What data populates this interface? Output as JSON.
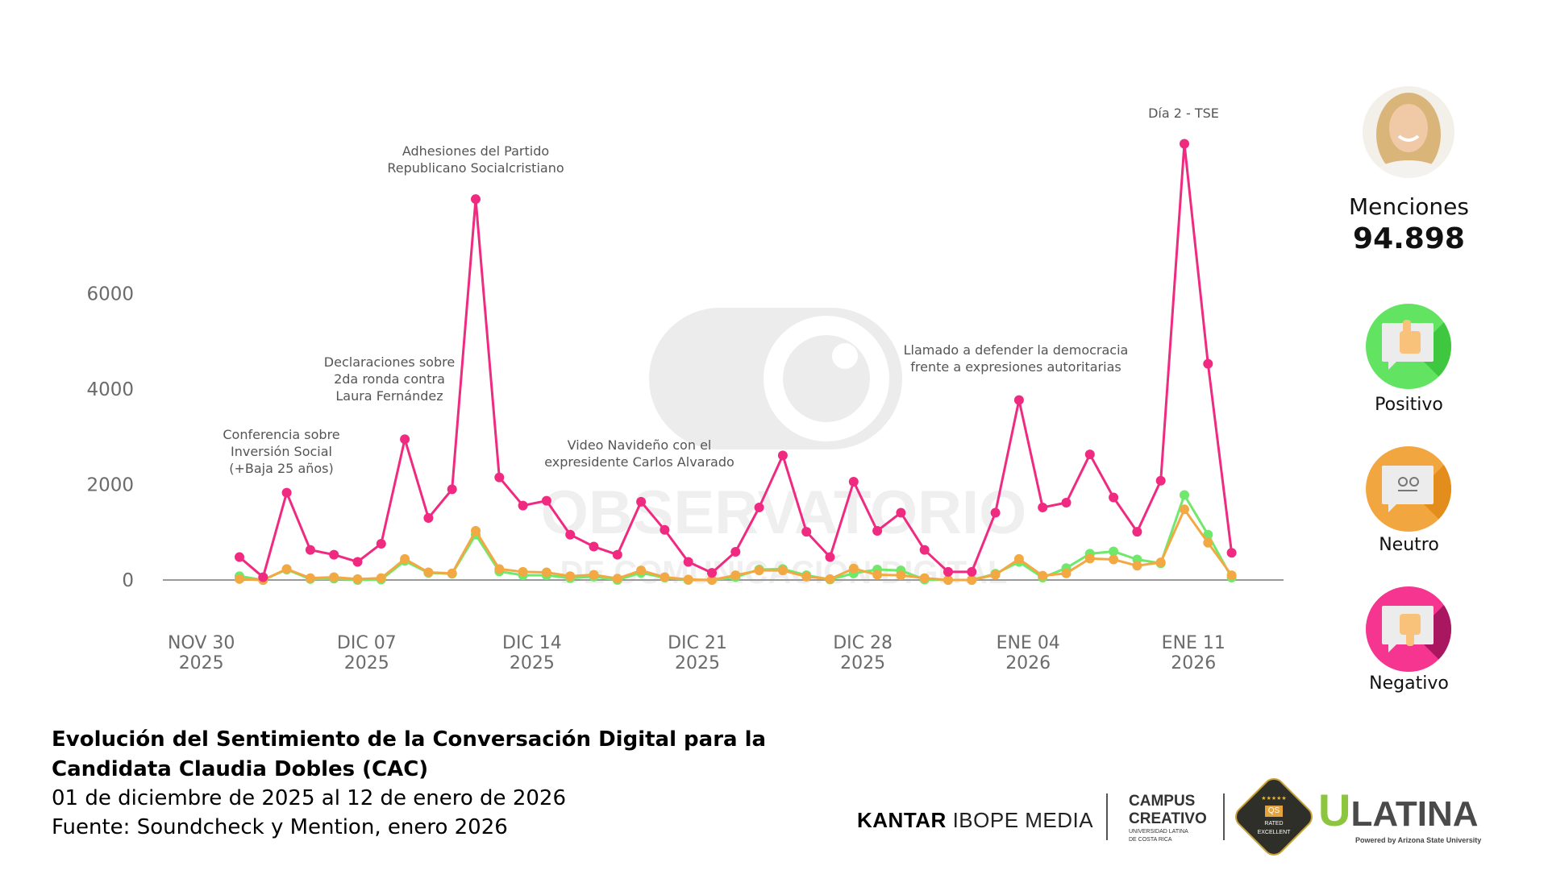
{
  "chart_data": {
    "type": "line",
    "title": "Evolución del Sentimiento de la Conversación Digital para la Candidata Claudia Dobles (CAC)",
    "xlabel": "",
    "ylabel": "",
    "ylim": [
      -300,
      9500
    ],
    "yticks": [
      "0",
      "2000",
      "4000",
      "6000"
    ],
    "ytick_values": [
      0,
      2000,
      4000,
      6000
    ],
    "x_start": "2025-12-01",
    "x_end": "2026-01-12",
    "xticks": [
      {
        "line1": "NOV 30",
        "line2": "2025",
        "day_index": -1
      },
      {
        "line1": "DIC 07",
        "line2": "2025",
        "day_index": 6
      },
      {
        "line1": "DIC 14",
        "line2": "2025",
        "day_index": 13
      },
      {
        "line1": "DIC 21",
        "line2": "2025",
        "day_index": 20
      },
      {
        "line1": "DIC 28",
        "line2": "2025",
        "day_index": 27
      },
      {
        "line1": "ENE 04",
        "line2": "2026",
        "day_index": 34
      },
      {
        "line1": "ENE 11",
        "line2": "2026",
        "day_index": 41
      }
    ],
    "grid": false,
    "series": [
      {
        "name": "Positivo",
        "color": "#6fe86b",
        "values": [
          80,
          0,
          220,
          20,
          30,
          0,
          10,
          400,
          150,
          130,
          950,
          180,
          100,
          100,
          40,
          70,
          0,
          150,
          50,
          0,
          0,
          60,
          220,
          230,
          100,
          10,
          140,
          220,
          200,
          10,
          0,
          0,
          130,
          380,
          50,
          250,
          550,
          600,
          430,
          350,
          1780,
          950,
          50
        ]
      },
      {
        "name": "Neutro",
        "color": "#f2a944",
        "values": [
          20,
          0,
          230,
          40,
          60,
          20,
          40,
          440,
          160,
          140,
          1030,
          230,
          170,
          160,
          80,
          110,
          30,
          200,
          60,
          10,
          0,
          100,
          200,
          200,
          70,
          20,
          240,
          110,
          100,
          40,
          0,
          0,
          110,
          440,
          90,
          140,
          450,
          430,
          300,
          370,
          1480,
          780,
          100
        ]
      },
      {
        "name": "Negativo",
        "color": "#ef2a80",
        "values": [
          480,
          60,
          1830,
          630,
          530,
          380,
          760,
          2950,
          1300,
          1900,
          7980,
          2150,
          1560,
          1660,
          950,
          700,
          530,
          1640,
          1050,
          380,
          150,
          590,
          1520,
          2610,
          1010,
          480,
          2060,
          1030,
          1410,
          630,
          170,
          170,
          1410,
          3770,
          1520,
          1620,
          2630,
          1730,
          1010,
          2080,
          9140,
          4530,
          570
        ]
      }
    ],
    "annotations": [
      {
        "lines": [
          "Conferencia sobre",
          "Inversión Social",
          "(+Baja 25 años)"
        ],
        "day_index": 2
      },
      {
        "lines": [
          "Declaraciones sobre",
          "2da ronda contra",
          "Laura Fernández"
        ],
        "day_index": 7
      },
      {
        "lines": [
          "Adhesiones del Partido",
          "Republicano Socialcristiano"
        ],
        "day_index": 10
      },
      {
        "lines": [
          "Video Navideño con el",
          "expresidente Carlos Alvarado"
        ],
        "day_index": 17
      },
      {
        "lines": [
          "Llamado a defender la democracia",
          "frente a expresiones autoritarias"
        ],
        "day_index": 33
      },
      {
        "lines": [
          "Día 2 - TSE"
        ],
        "day_index": 40
      }
    ]
  },
  "watermark": {
    "line1": "OBSERVATORIO",
    "line2": "DE COMUNICACIÓN DIGITAL"
  },
  "panel": {
    "mentions_label": "Menciones",
    "mentions_value": "94.898",
    "positive_label": "Positivo",
    "neutral_label": "Neutro",
    "negative_label": "Negativo",
    "colors": {
      "positive": "#5fe35f",
      "neutral": "#f2a640",
      "negative": "#f5358f"
    }
  },
  "footer": {
    "title_line1": "Evolución del Sentimiento de la Conversación Digital para la",
    "title_line2": "Candidata Claudia Dobles (CAC)",
    "date_range": "01 de diciembre de 2025 al 12 de enero de 2026",
    "source": "Fuente: Soundcheck y Mention, enero 2026"
  },
  "logos": {
    "kantar_bold": "KANTAR",
    "kantar_light": "IBOPE MEDIA",
    "campus_line1": "CAMPUS",
    "campus_line2": "CREATIVO",
    "campus_sub1": "UNIVERSIDAD LATINA",
    "campus_sub2": "DE COSTA RICA",
    "qs_badge": "QS",
    "qs_rated": "RATED",
    "qs_excellent": "EXCELLENT",
    "ulatina_u": "U",
    "ulatina_rest": "LATINA",
    "ulatina_powered": "Powered by Arizona State University"
  }
}
